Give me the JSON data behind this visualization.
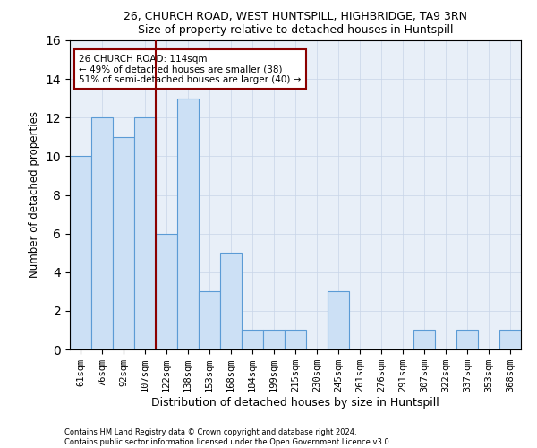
{
  "title1": "26, CHURCH ROAD, WEST HUNTSPILL, HIGHBRIDGE, TA9 3RN",
  "title2": "Size of property relative to detached houses in Huntspill",
  "xlabel": "Distribution of detached houses by size in Huntspill",
  "ylabel": "Number of detached properties",
  "categories": [
    "61sqm",
    "76sqm",
    "92sqm",
    "107sqm",
    "122sqm",
    "138sqm",
    "153sqm",
    "168sqm",
    "184sqm",
    "199sqm",
    "215sqm",
    "230sqm",
    "245sqm",
    "261sqm",
    "276sqm",
    "291sqm",
    "307sqm",
    "322sqm",
    "337sqm",
    "353sqm",
    "368sqm"
  ],
  "values": [
    10,
    12,
    11,
    12,
    6,
    13,
    3,
    5,
    1,
    1,
    1,
    0,
    3,
    0,
    0,
    0,
    1,
    0,
    1,
    0,
    1
  ],
  "bar_color": "#cce0f5",
  "bar_edge_color": "#5b9bd5",
  "vline_x": 3.5,
  "vline_color": "#8b0000",
  "annotation_text": "26 CHURCH ROAD: 114sqm\n← 49% of detached houses are smaller (38)\n51% of semi-detached houses are larger (40) →",
  "annotation_box_color": "#8b0000",
  "ylim": [
    0,
    16
  ],
  "yticks": [
    0,
    2,
    4,
    6,
    8,
    10,
    12,
    14,
    16
  ],
  "footer1": "Contains HM Land Registry data © Crown copyright and database right 2024.",
  "footer2": "Contains public sector information licensed under the Open Government Licence v3.0."
}
